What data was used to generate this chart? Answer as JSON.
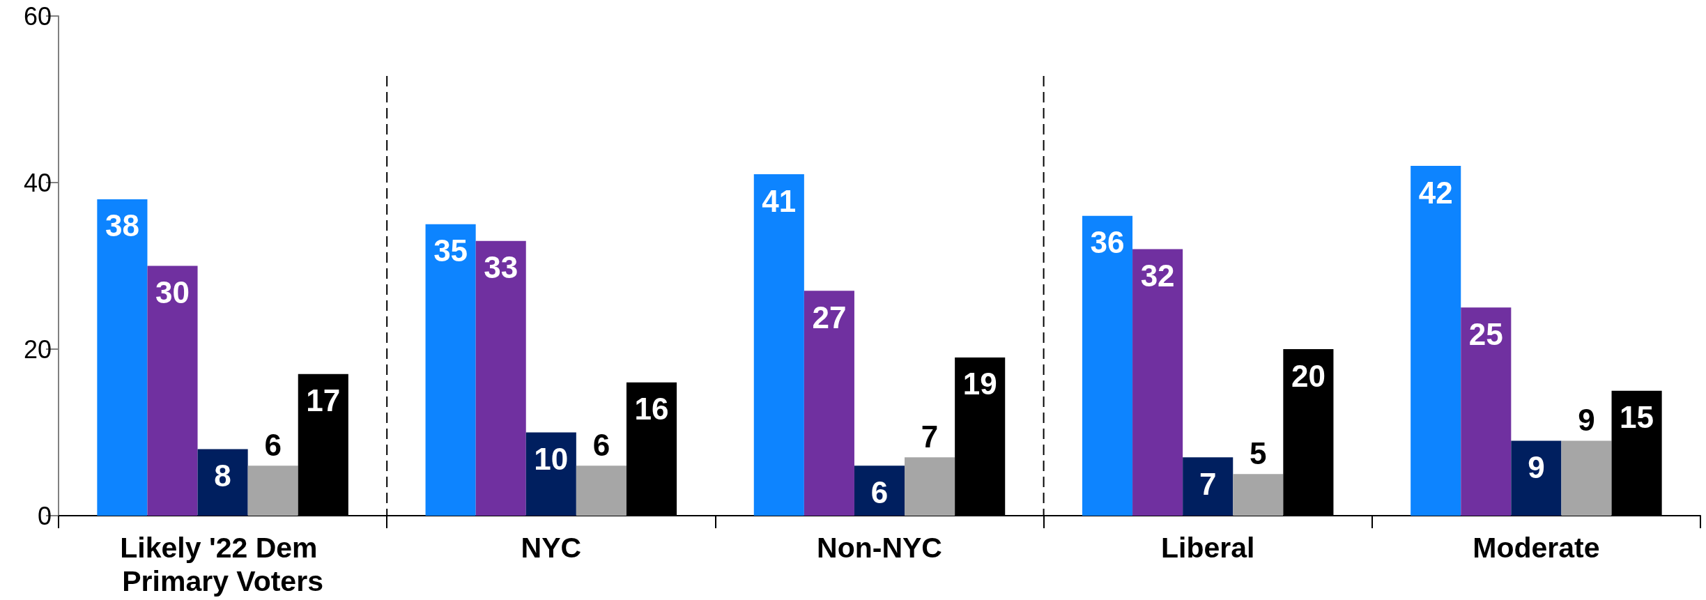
{
  "chart_data": {
    "type": "bar",
    "categories": [
      "Likely '22 Dem Primary Voters",
      "NYC",
      "Non-NYC",
      "Liberal",
      "Moderate"
    ],
    "series": [
      {
        "color": "#0d84ff",
        "values": [
          38,
          35,
          41,
          36,
          42
        ]
      },
      {
        "color": "#7030a0",
        "values": [
          30,
          33,
          27,
          32,
          25
        ]
      },
      {
        "color": "#001f5f",
        "values": [
          8,
          10,
          6,
          7,
          9
        ]
      },
      {
        "color": "#a6a6a6",
        "values": [
          6,
          6,
          7,
          5,
          9
        ]
      },
      {
        "color": "#000000",
        "values": [
          17,
          16,
          19,
          20,
          15
        ]
      }
    ],
    "ylim": [
      0,
      60
    ],
    "yticks": [
      0,
      20,
      40,
      60
    ],
    "data_labels": true,
    "grid": false
  }
}
